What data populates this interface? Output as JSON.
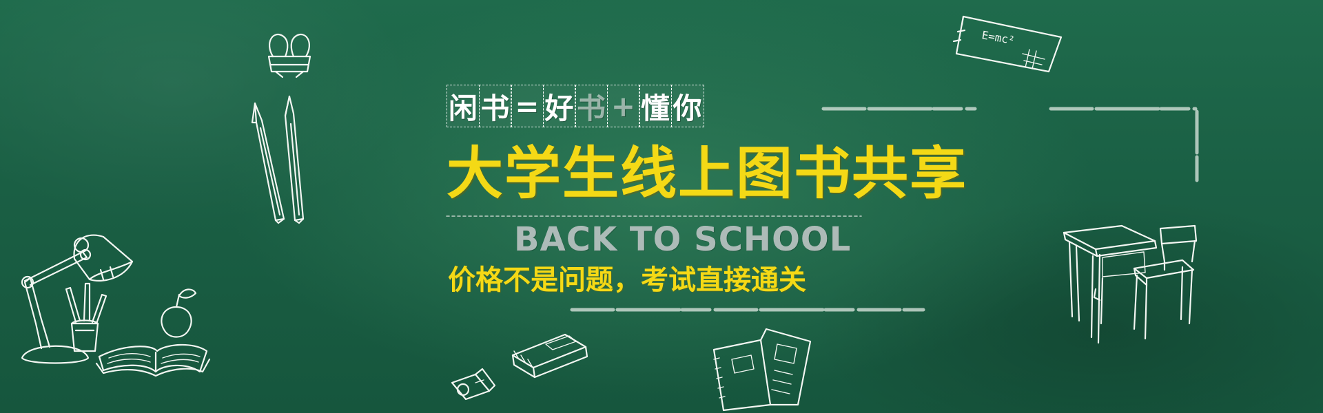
{
  "banner": {
    "tagline_chars": [
      "闲",
      "书",
      "=",
      "好",
      "书",
      "+",
      "懂",
      "你"
    ],
    "main_title": "大学生线上图书共享",
    "english_title": "BACK TO SCHOOL",
    "subtitle": "价格不是问题，考试直接通关"
  },
  "doodles": {
    "formula": "E=mc²",
    "icons": [
      "binder-clip-icon",
      "pencils-icon",
      "desk-lamp-icon",
      "pencil-cup-icon",
      "apple-icon",
      "open-book-icon",
      "pencil-sharpener-icon",
      "crayon-box-icon",
      "notebooks-icon",
      "school-desk-icon",
      "chair-icon",
      "formula-card-icon"
    ]
  },
  "colors": {
    "chalkboard": "#1a5f44",
    "accent_yellow": "#f4d916",
    "chalk_white": "#f3f6f2",
    "muted_grey": "#b9c2c1"
  }
}
